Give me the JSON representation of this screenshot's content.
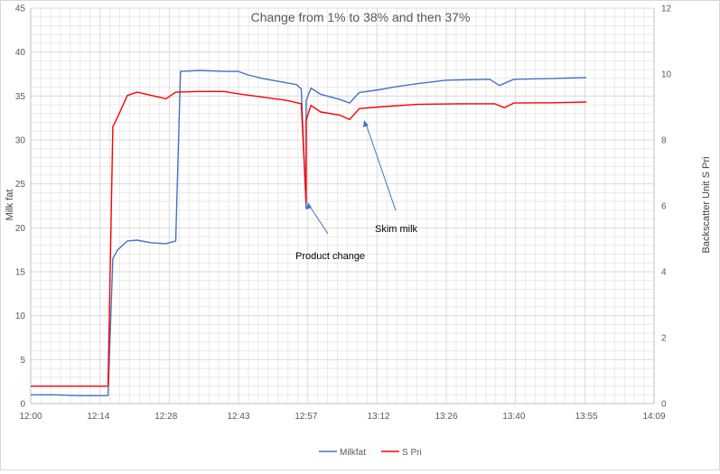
{
  "chart_data": {
    "type": "line",
    "title": "Change from 1% to 38% and then 37%",
    "ylabel": "Milk fat",
    "y2label": "Backscatter Unit S Pri",
    "x_ticks": [
      "12:00",
      "12:14",
      "12:28",
      "12:43",
      "12:57",
      "13:12",
      "13:26",
      "13:40",
      "13:55",
      "14:09"
    ],
    "ylim": [
      0,
      45
    ],
    "y_ticks": [
      0,
      5,
      10,
      15,
      20,
      25,
      30,
      35,
      40,
      45
    ],
    "y2lim": [
      0,
      12
    ],
    "y2_ticks": [
      0,
      2,
      4,
      6,
      8,
      10,
      12
    ],
    "grid": true,
    "legend_position": "bottom",
    "series": [
      {
        "name": "Milkfat",
        "axis": "left",
        "color": "#4472c4",
        "points": [
          [
            "12:00",
            1.0
          ],
          [
            "12:05",
            1.0
          ],
          [
            "12:10",
            0.9
          ],
          [
            "12:16",
            0.9
          ],
          [
            "12:17",
            16.5
          ],
          [
            "12:18",
            17.5
          ],
          [
            "12:20",
            18.5
          ],
          [
            "12:22",
            18.6
          ],
          [
            "12:25",
            18.3
          ],
          [
            "12:28",
            18.2
          ],
          [
            "12:30",
            18.5
          ],
          [
            "12:31",
            37.8
          ],
          [
            "12:35",
            37.9
          ],
          [
            "12:40",
            37.8
          ],
          [
            "12:43",
            37.8
          ],
          [
            "12:45",
            37.4
          ],
          [
            "12:48",
            37.0
          ],
          [
            "12:52",
            36.6
          ],
          [
            "12:55",
            36.3
          ],
          [
            "12:56",
            35.8
          ],
          [
            "12:57",
            22.2
          ],
          [
            "12:57",
            34.5
          ],
          [
            "12:58",
            35.9
          ],
          [
            "13:00",
            35.2
          ],
          [
            "13:04",
            34.6
          ],
          [
            "13:06",
            34.2
          ],
          [
            "13:08",
            35.4
          ],
          [
            "13:12",
            35.7
          ],
          [
            "13:15",
            36.0
          ],
          [
            "13:20",
            36.4
          ],
          [
            "13:26",
            36.8
          ],
          [
            "13:35",
            36.9
          ],
          [
            "13:37",
            36.2
          ],
          [
            "13:40",
            36.9
          ],
          [
            "13:48",
            37.0
          ],
          [
            "13:55",
            37.1
          ]
        ]
      },
      {
        "name": "S Pri",
        "axis": "right",
        "color": "#ff0000",
        "points": [
          [
            "12:00",
            0.53
          ],
          [
            "12:05",
            0.53
          ],
          [
            "12:10",
            0.53
          ],
          [
            "12:16",
            0.53
          ],
          [
            "12:17",
            8.4
          ],
          [
            "12:18",
            8.7
          ],
          [
            "12:20",
            9.35
          ],
          [
            "12:22",
            9.45
          ],
          [
            "12:25",
            9.35
          ],
          [
            "12:28",
            9.25
          ],
          [
            "12:30",
            9.45
          ],
          [
            "12:35",
            9.47
          ],
          [
            "12:40",
            9.47
          ],
          [
            "12:43",
            9.4
          ],
          [
            "12:48",
            9.3
          ],
          [
            "12:53",
            9.2
          ],
          [
            "12:56",
            9.1
          ],
          [
            "12:57",
            6.1
          ],
          [
            "12:57",
            8.6
          ],
          [
            "12:58",
            9.05
          ],
          [
            "13:00",
            8.85
          ],
          [
            "13:04",
            8.75
          ],
          [
            "13:06",
            8.62
          ],
          [
            "13:08",
            8.95
          ],
          [
            "13:12",
            9.0
          ],
          [
            "13:20",
            9.08
          ],
          [
            "13:30",
            9.1
          ],
          [
            "13:36",
            9.1
          ],
          [
            "13:38",
            8.98
          ],
          [
            "13:40",
            9.12
          ],
          [
            "13:48",
            9.13
          ],
          [
            "13:55",
            9.15
          ]
        ]
      }
    ],
    "annotations": [
      {
        "text": "Product change"
      },
      {
        "text": "Skim milk"
      }
    ]
  }
}
